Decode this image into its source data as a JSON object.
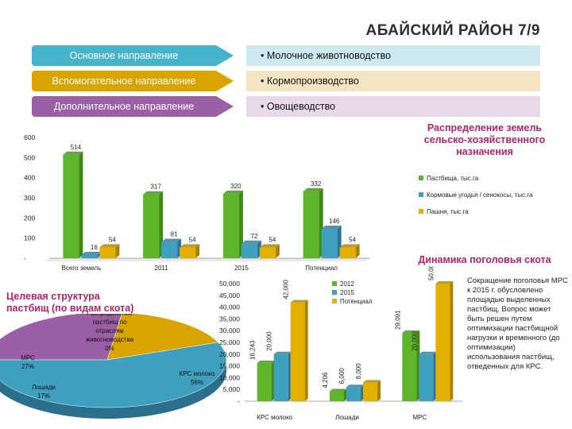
{
  "header": {
    "title": "АБАЙСКИЙ РАЙОН 7/9"
  },
  "directions": [
    {
      "label": "Основное направление",
      "value": "• Молочное животноводство"
    },
    {
      "label": "Вспомогательное направление",
      "value": "• Кормопроизводство"
    },
    {
      "label": "Дополнительное направление",
      "value": "• Овощеводство"
    }
  ],
  "colors": {
    "green": "#5fb52a",
    "teal": "#3e9fbf",
    "gold": "#e3b000",
    "pink": "#b4226b"
  },
  "chart_data": [
    {
      "type": "bar",
      "title": "Распределение земель сельско-хозяйственного назначения",
      "categories": [
        "Всего земель",
        "2011",
        "2015",
        "Потенциал"
      ],
      "series": [
        {
          "name": "Пастбища, тыс.га",
          "values": [
            514,
            317,
            320,
            332
          ]
        },
        {
          "name": "Кормовые угодья / сенокосы, тыс.га",
          "values": [
            16,
            81,
            72,
            146
          ]
        },
        {
          "name": "Пашня, тыс.га",
          "values": [
            54,
            54,
            54,
            54
          ]
        }
      ],
      "ylim": [
        0,
        600
      ],
      "yticks": [
        "600",
        "500",
        "400",
        "300",
        "200",
        "100",
        "-"
      ],
      "legend": "right"
    },
    {
      "type": "pie",
      "title": "Целевая структура пастбищ (по видам скота)",
      "slices": [
        {
          "label": "МРС",
          "value": 27,
          "text": "МРС 27%"
        },
        {
          "label": "Лошади",
          "value": 17,
          "text": "Лошади 17%"
        },
        {
          "label": "КРС молоко",
          "value": 56,
          "text": "КРС молоко 56%"
        },
        {
          "label": "Распределение пастбищ по отраслям животноводства",
          "value": 0,
          "text": "Распределение пастбищ по отраслям животноводства 0%"
        }
      ]
    },
    {
      "type": "bar",
      "title": "Динамика поголовья скота",
      "categories": [
        "КРС молоко",
        "Лошади",
        "МРС"
      ],
      "series": [
        {
          "name": "2012",
          "values": [
            16.243,
            4.206,
            29.091
          ]
        },
        {
          "name": "2015",
          "values": [
            20.0,
            6.0,
            20.0
          ]
        },
        {
          "name": "Потенциал",
          "values": [
            42.0,
            8.0,
            50.0
          ]
        }
      ],
      "value_labels": [
        [
          "16,243",
          "20,000",
          "42,000"
        ],
        [
          "4,206",
          "6,000",
          "8,000"
        ],
        [
          "29,091",
          "20,000",
          "50,000"
        ]
      ],
      "ylim": [
        0,
        50
      ],
      "yticks": [
        "50,000",
        "45,000",
        "40,000",
        "35,000",
        "30,000",
        "25,000",
        "20,000",
        "15,000",
        "10,000",
        "5,000",
        "-"
      ],
      "legend": "top-center"
    }
  ],
  "side_note": "Сокращение поголовья МРС к 2015 г. обусловлено площадью выделенных пастбищ. Вопрос может быть решен путем оптимизации пастбищной нагрузки и временного (до оптимизации) использования пастбищ, отведенных для КРС."
}
